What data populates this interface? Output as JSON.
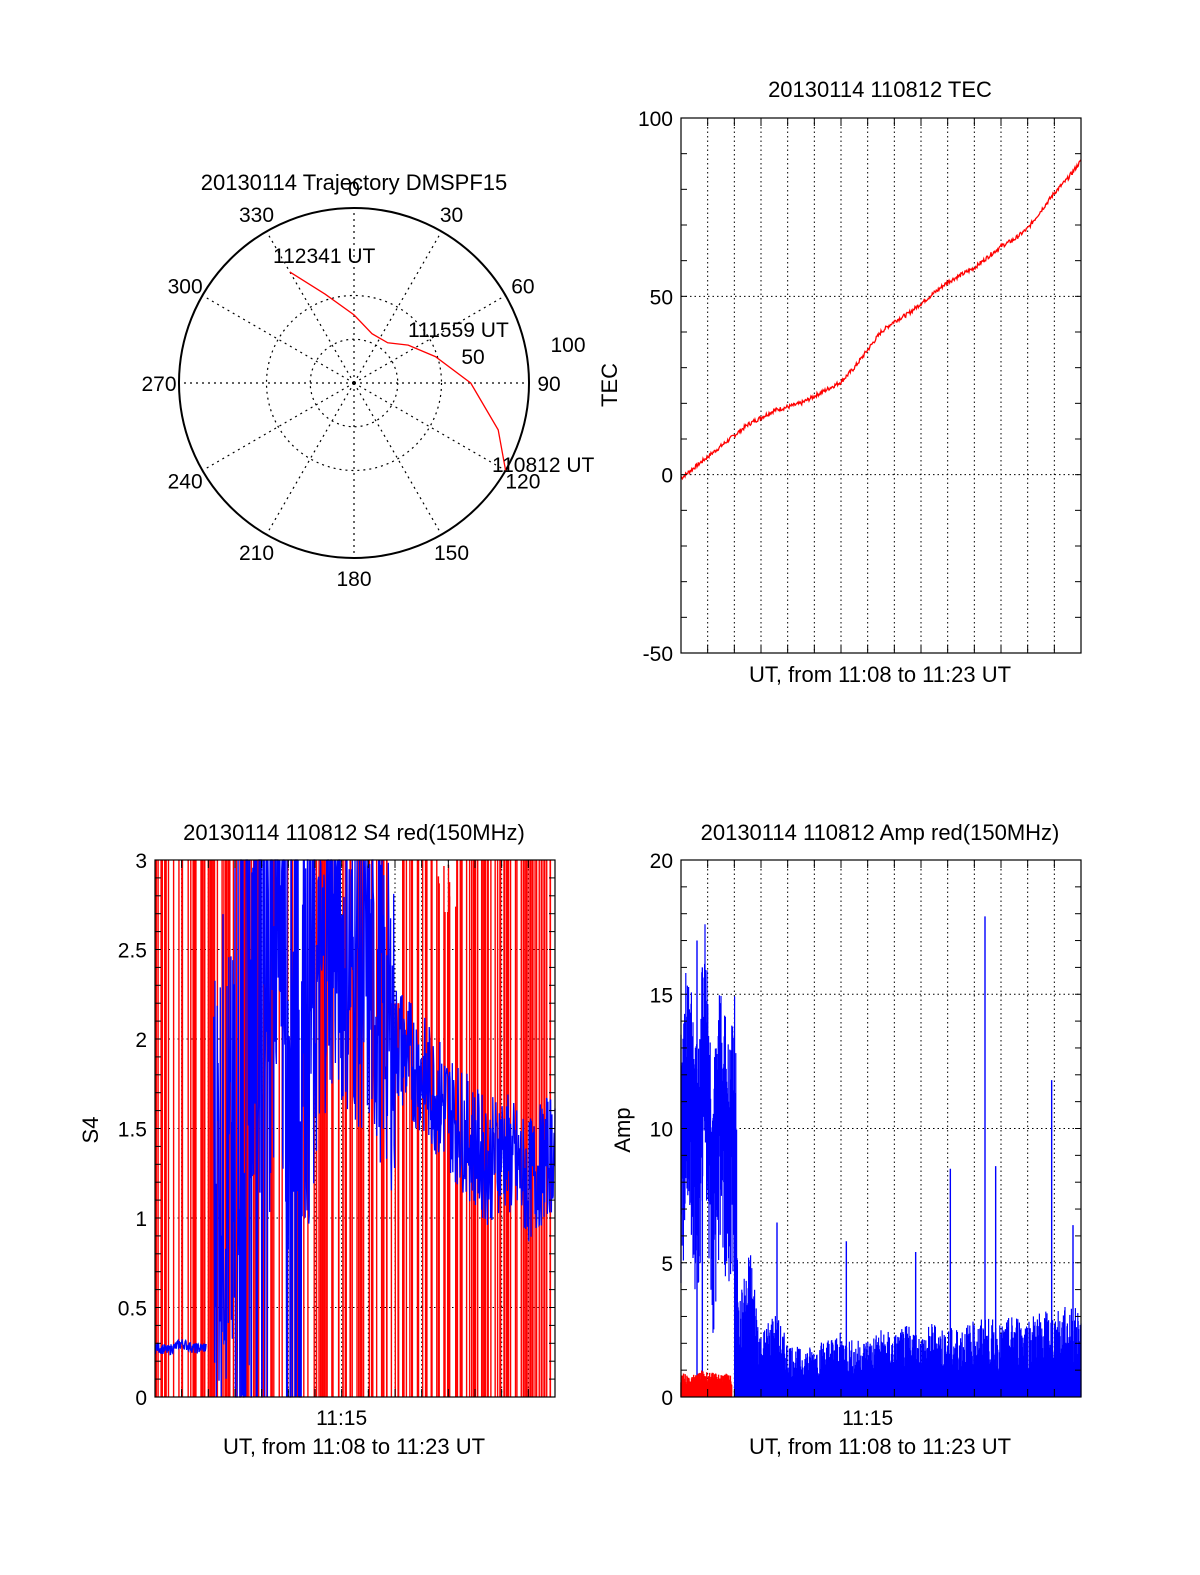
{
  "chart_data": [
    {
      "type": "polar",
      "title": "20130114 Trajectory DMSPF15",
      "angle_labels": [
        "0",
        "30",
        "60",
        "90",
        "120",
        "150",
        "180",
        "210",
        "240",
        "270",
        "300",
        "330"
      ],
      "radial_labels": [
        "50",
        "100"
      ],
      "radial_range": [
        0,
        100
      ],
      "grid": true,
      "trajectory": {
        "color": "#ff0000",
        "points": [
          {
            "azimuth": 120,
            "elevation": 0
          },
          {
            "azimuth": 108,
            "elevation": 12
          },
          {
            "azimuth": 90,
            "elevation": 30
          },
          {
            "azimuth": 72,
            "elevation": 46
          },
          {
            "azimuth": 55,
            "elevation": 56
          },
          {
            "azimuth": 40,
            "elevation": 63
          },
          {
            "azimuth": 20,
            "elevation": 63
          },
          {
            "azimuth": 0,
            "elevation": 55
          },
          {
            "azimuth": -18,
            "elevation": 42
          },
          {
            "azimuth": -30,
            "elevation": 24
          }
        ]
      },
      "annotations": [
        {
          "text": "112341 UT",
          "azimuth": -30,
          "elevation": 24
        },
        {
          "text": "111559 UT",
          "azimuth": 64,
          "elevation": 52
        },
        {
          "text": "110812 UT",
          "azimuth": 120,
          "elevation": 0
        }
      ]
    },
    {
      "type": "line",
      "title": "20130114 110812 TEC",
      "xlabel": "UT, from 11:08 to 11:23 UT",
      "ylabel": "TEC",
      "xlim": [
        0,
        15
      ],
      "ylim": [
        -50,
        100
      ],
      "yticks": [
        "-50",
        "0",
        "50",
        "100"
      ],
      "grid": true,
      "series": [
        {
          "color": "#ff0000",
          "x": [
            0,
            0.5,
            1,
            1.5,
            2,
            2.5,
            3,
            3.5,
            4,
            4.5,
            5,
            5.5,
            6,
            6.5,
            7,
            7.5,
            8,
            8.5,
            9,
            9.5,
            10,
            10.5,
            11,
            11.5,
            12,
            12.5,
            13,
            13.5,
            14,
            14.5,
            15
          ],
          "y": [
            -1,
            2,
            5,
            8,
            11,
            14,
            16,
            18,
            19,
            20,
            22,
            24,
            26,
            30,
            35,
            40,
            43,
            45,
            48,
            51,
            54,
            56,
            58,
            61,
            64,
            66,
            69,
            74,
            79,
            83,
            88
          ]
        }
      ]
    },
    {
      "type": "line",
      "title": "20130114 110812 S4 red(150MHz)",
      "xlabel": "UT, from 11:08 to 11:23 UT",
      "ylabel": "S4",
      "xlim": [
        0,
        15
      ],
      "ylim": [
        0,
        3
      ],
      "xticks": [
        {
          "x": 7,
          "label": "11:15"
        }
      ],
      "yticks": [
        "0",
        "0.5",
        "1",
        "1.5",
        "2",
        "2.5",
        "3"
      ],
      "grid": true,
      "series": [
        {
          "color": "#0000ff",
          "x": [
            0,
            0.5,
            1,
            1.5,
            2,
            2.2,
            2.6,
            3,
            3.4,
            3.8,
            4.2,
            4.6,
            5,
            5.5,
            6,
            6.5,
            7,
            7.5,
            8,
            8.5,
            9,
            9.5,
            10,
            10.5,
            11,
            11.5,
            12,
            12.5,
            13,
            13.5,
            14,
            14.5,
            15
          ],
          "y": [
            0.28,
            0.26,
            0.3,
            0.27,
            0.28,
            1.2,
            1.4,
            1.0,
            0.6,
            2.6,
            2.2,
            2.8,
            1.9,
            2.4,
            2.1,
            2.6,
            2.5,
            2.4,
            2.3,
            2.2,
            2.0,
            1.9,
            1.8,
            1.7,
            1.6,
            1.5,
            1.4,
            1.3,
            1.4,
            1.3,
            1.2,
            1.3,
            1.4
          ]
        },
        {
          "color": "#ff0000",
          "note_x": [
            0.3,
            0.7,
            1.1,
            1.5,
            1.9,
            2.4,
            2.9,
            3.3,
            3.8,
            4.4,
            5.1,
            5.9,
            6.6,
            7.3,
            8.1,
            8.9,
            9.5,
            10.3,
            11.0,
            11.8,
            12.6,
            13.4,
            14.1,
            14.8
          ],
          "peaks": [
            3,
            3,
            3,
            3,
            3,
            3,
            3,
            2.9,
            3,
            3,
            3,
            3,
            3,
            3,
            3,
            2.2,
            3,
            3,
            3,
            3,
            3,
            3,
            3,
            3
          ]
        }
      ]
    },
    {
      "type": "line",
      "title": "20130114 110812 Amp red(150MHz)",
      "xlabel": "UT, from 11:08 to 11:23 UT",
      "ylabel": "Amp",
      "xlim": [
        0,
        15
      ],
      "ylim": [
        0,
        20
      ],
      "xticks": [
        {
          "x": 7,
          "label": "11:15"
        }
      ],
      "yticks": [
        "0",
        "5",
        "10",
        "15",
        "20"
      ],
      "grid": true,
      "series": [
        {
          "color": "#0000ff",
          "x": [
            0,
            0.3,
            0.6,
            0.9,
            1.2,
            1.5,
            1.8,
            2.0,
            2.2,
            2.6,
            3,
            3.5,
            4,
            4.5,
            5,
            5.5,
            6,
            6.5,
            7,
            7.5,
            8,
            8.5,
            9,
            9.5,
            10,
            10.5,
            11,
            11.5,
            12,
            12.5,
            13,
            13.5,
            14,
            14.5,
            15
          ],
          "y": [
            10,
            13,
            9,
            14,
            8,
            12,
            9,
            11,
            2.5,
            3.8,
            1.6,
            2.2,
            1.4,
            1.2,
            1.3,
            1.5,
            1.6,
            1.4,
            1.5,
            1.7,
            1.6,
            1.8,
            1.6,
            1.9,
            1.7,
            1.8,
            1.9,
            2.0,
            1.8,
            2.1,
            2.0,
            2.2,
            2.1,
            2.3,
            2.2
          ],
          "spikes": [
            {
              "x": 0.8,
              "y": 16
            },
            {
              "x": 0.6,
              "y": 17
            },
            {
              "x": 3.6,
              "y": 6.5
            },
            {
              "x": 6.2,
              "y": 5.8
            },
            {
              "x": 8.8,
              "y": 5.4
            },
            {
              "x": 11.8,
              "y": 8.6
            },
            {
              "x": 10.1,
              "y": 8.5
            },
            {
              "x": 11.4,
              "y": 17.9
            },
            {
              "x": 13.9,
              "y": 11.8
            },
            {
              "x": 14.7,
              "y": 6.4
            }
          ]
        },
        {
          "color": "#ff0000",
          "x": [
            0,
            0.4,
            0.8,
            1.2,
            1.6,
            1.9
          ],
          "y": [
            0.5,
            0.4,
            0.6,
            0.5,
            0.5,
            0.4
          ]
        }
      ]
    }
  ]
}
